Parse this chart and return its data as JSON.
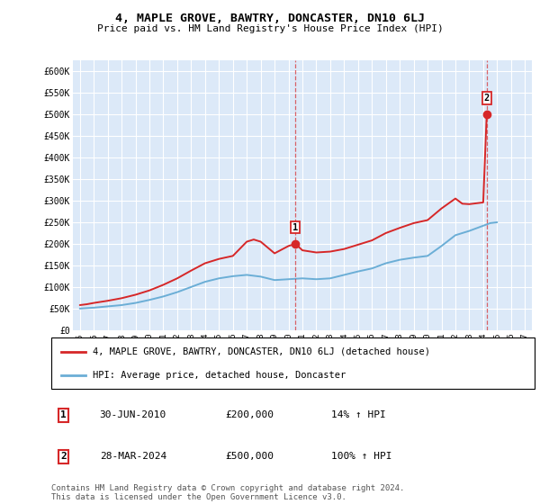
{
  "title": "4, MAPLE GROVE, BAWTRY, DONCASTER, DN10 6LJ",
  "subtitle": "Price paid vs. HM Land Registry's House Price Index (HPI)",
  "ylim": [
    0,
    625000
  ],
  "yticks": [
    0,
    50000,
    100000,
    150000,
    200000,
    250000,
    300000,
    350000,
    400000,
    450000,
    500000,
    550000,
    600000
  ],
  "ytick_labels": [
    "£0",
    "£50K",
    "£100K",
    "£150K",
    "£200K",
    "£250K",
    "£300K",
    "£350K",
    "£400K",
    "£450K",
    "£500K",
    "£550K",
    "£600K"
  ],
  "xlim_start": 1994.5,
  "xlim_end": 2027.5,
  "xticks": [
    1995,
    1996,
    1997,
    1998,
    1999,
    2000,
    2001,
    2002,
    2003,
    2004,
    2005,
    2006,
    2007,
    2008,
    2009,
    2010,
    2011,
    2012,
    2013,
    2014,
    2015,
    2016,
    2017,
    2018,
    2019,
    2020,
    2021,
    2022,
    2023,
    2024,
    2025,
    2026,
    2027
  ],
  "background_color": "#ffffff",
  "plot_bg_color": "#dce9f8",
  "grid_color": "#ffffff",
  "hpi_color": "#6baed6",
  "price_color": "#d62728",
  "sale1_x": 2010.5,
  "sale1_y": 200000,
  "sale2_x": 2024.25,
  "sale2_y": 500000,
  "legend_entry1": "4, MAPLE GROVE, BAWTRY, DONCASTER, DN10 6LJ (detached house)",
  "legend_entry2": "HPI: Average price, detached house, Doncaster",
  "table_row1_label": "1",
  "table_row1_date": "30-JUN-2010",
  "table_row1_price": "£200,000",
  "table_row1_hpi": "14% ↑ HPI",
  "table_row2_label": "2",
  "table_row2_date": "28-MAR-2024",
  "table_row2_price": "£500,000",
  "table_row2_hpi": "100% ↑ HPI",
  "footer": "Contains HM Land Registry data © Crown copyright and database right 2024.\nThis data is licensed under the Open Government Licence v3.0.",
  "hpi_data_x": [
    1995,
    1995.5,
    1996,
    1997,
    1998,
    1999,
    2000,
    2001,
    2002,
    2003,
    2004,
    2005,
    2006,
    2007,
    2008,
    2009,
    2010,
    2010.5,
    2011,
    2012,
    2013,
    2014,
    2015,
    2016,
    2017,
    2018,
    2019,
    2020,
    2021,
    2022,
    2023,
    2024,
    2024.5,
    2025
  ],
  "hpi_data_y": [
    50000,
    51000,
    52000,
    55000,
    58000,
    63000,
    70000,
    78000,
    88000,
    100000,
    112000,
    120000,
    125000,
    128000,
    124000,
    116000,
    118000,
    119000,
    120000,
    118000,
    120000,
    128000,
    136000,
    143000,
    155000,
    163000,
    168000,
    172000,
    195000,
    220000,
    230000,
    242000,
    248000,
    250000
  ],
  "price_data_x": [
    1995,
    1995.5,
    1996,
    1997,
    1998,
    1999,
    2000,
    2001,
    2002,
    2003,
    2004,
    2005,
    2006,
    2007,
    2007.5,
    2008,
    2009,
    2010,
    2010.5,
    2011,
    2012,
    2013,
    2014,
    2015,
    2016,
    2017,
    2018,
    2019,
    2020,
    2021,
    2022,
    2022.5,
    2023,
    2024,
    2024.25
  ],
  "price_data_y": [
    58000,
    60000,
    63000,
    68000,
    74000,
    82000,
    92000,
    105000,
    120000,
    138000,
    155000,
    165000,
    172000,
    205000,
    210000,
    205000,
    178000,
    195000,
    200000,
    185000,
    180000,
    182000,
    188000,
    198000,
    208000,
    225000,
    237000,
    248000,
    255000,
    282000,
    305000,
    293000,
    292000,
    296000,
    500000
  ]
}
